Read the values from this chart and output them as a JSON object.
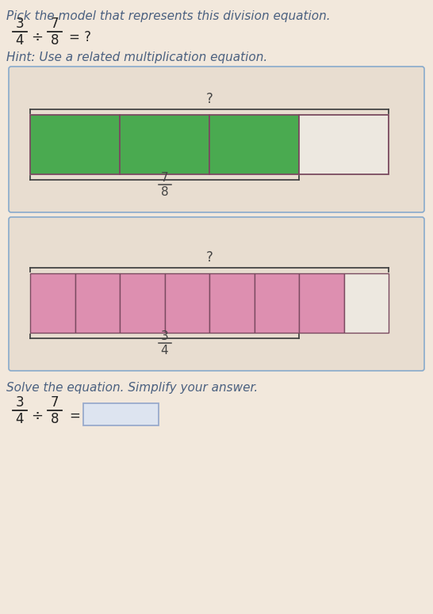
{
  "bg_color": "#f2e8dc",
  "title_text": "Pick the model that represents this division equation.",
  "title_color": "#4a6080",
  "hint_text": "Hint: Use a related multiplication equation.",
  "green_color": "#4aaa50",
  "pink_color": "#dd8fb0",
  "white_fill": "#ede8e0",
  "bar_border": "#7a4a60",
  "brace_color": "#444444",
  "label_color": "#444444",
  "solve_text": "Solve the equation. Simplify your answer.",
  "solve_color": "#4a6080",
  "answer_box_color": "#dde4f0",
  "answer_box_border": "#99aacc",
  "box_border_color": "#88aacc",
  "box_bg": "#e8ddd0",
  "dark_text": "#222222"
}
